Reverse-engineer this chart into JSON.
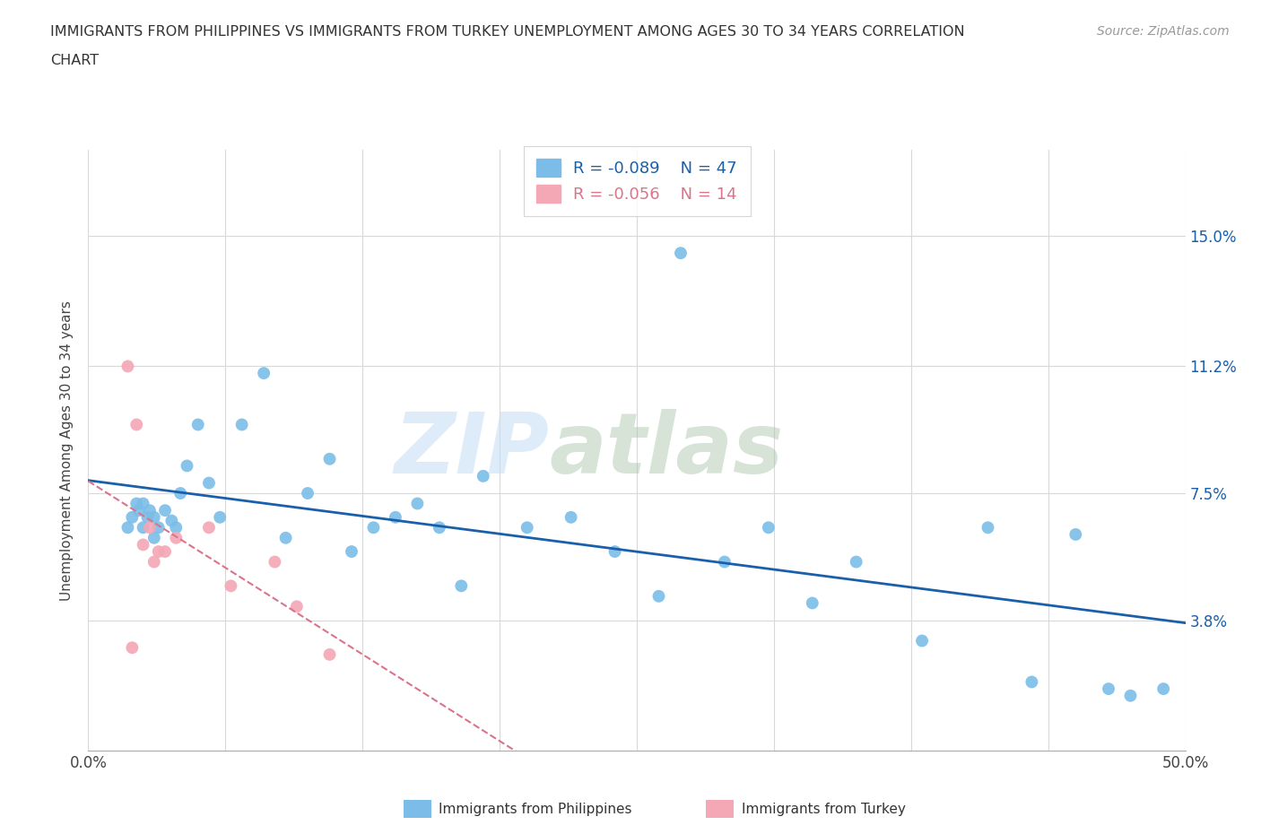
{
  "title_line1": "IMMIGRANTS FROM PHILIPPINES VS IMMIGRANTS FROM TURKEY UNEMPLOYMENT AMONG AGES 30 TO 34 YEARS CORRELATION",
  "title_line2": "CHART",
  "source": "Source: ZipAtlas.com",
  "ylabel": "Unemployment Among Ages 30 to 34 years",
  "xlim": [
    0.0,
    0.5
  ],
  "ylim": [
    0.0,
    0.175
  ],
  "yticks": [
    0.0,
    0.038,
    0.075,
    0.112,
    0.15
  ],
  "ytick_labels": [
    "",
    "3.8%",
    "7.5%",
    "11.2%",
    "15.0%"
  ],
  "xticks": [
    0.0,
    0.0625,
    0.125,
    0.1875,
    0.25,
    0.3125,
    0.375,
    0.4375,
    0.5
  ],
  "xtick_labels": [
    "0.0%",
    "",
    "",
    "",
    "",
    "",
    "",
    "",
    "50.0%"
  ],
  "philippines_x": [
    0.018,
    0.02,
    0.022,
    0.023,
    0.025,
    0.025,
    0.027,
    0.028,
    0.03,
    0.03,
    0.032,
    0.035,
    0.038,
    0.04,
    0.042,
    0.045,
    0.05,
    0.055,
    0.06,
    0.07,
    0.08,
    0.09,
    0.1,
    0.11,
    0.12,
    0.13,
    0.14,
    0.15,
    0.16,
    0.17,
    0.18,
    0.2,
    0.22,
    0.24,
    0.26,
    0.27,
    0.29,
    0.31,
    0.33,
    0.35,
    0.38,
    0.41,
    0.43,
    0.45,
    0.465,
    0.475,
    0.49
  ],
  "philippines_y": [
    0.065,
    0.068,
    0.072,
    0.07,
    0.065,
    0.072,
    0.068,
    0.07,
    0.062,
    0.068,
    0.065,
    0.07,
    0.067,
    0.065,
    0.075,
    0.083,
    0.095,
    0.078,
    0.068,
    0.095,
    0.11,
    0.062,
    0.075,
    0.085,
    0.058,
    0.065,
    0.068,
    0.072,
    0.065,
    0.048,
    0.08,
    0.065,
    0.068,
    0.058,
    0.045,
    0.145,
    0.055,
    0.065,
    0.043,
    0.055,
    0.032,
    0.065,
    0.02,
    0.063,
    0.018,
    0.016,
    0.018
  ],
  "turkey_x": [
    0.018,
    0.02,
    0.022,
    0.025,
    0.028,
    0.03,
    0.032,
    0.035,
    0.04,
    0.055,
    0.065,
    0.085,
    0.095,
    0.11
  ],
  "turkey_y": [
    0.112,
    0.03,
    0.095,
    0.06,
    0.065,
    0.055,
    0.058,
    0.058,
    0.062,
    0.065,
    0.048,
    0.055,
    0.042,
    0.028
  ],
  "philippines_color": "#7bbde8",
  "turkey_color": "#f4a7b5",
  "philippines_line_color": "#1a5faa",
  "turkey_line_color": "#d9748a",
  "philippines_r": -0.089,
  "philippines_n": 47,
  "turkey_r": -0.056,
  "turkey_n": 14,
  "legend_label_philippines": "Immigrants from Philippines",
  "legend_label_turkey": "Immigrants from Turkey",
  "grid_color": "#d8d8d8",
  "background_color": "#ffffff",
  "watermark1": "ZIP",
  "watermark2": "atlas"
}
